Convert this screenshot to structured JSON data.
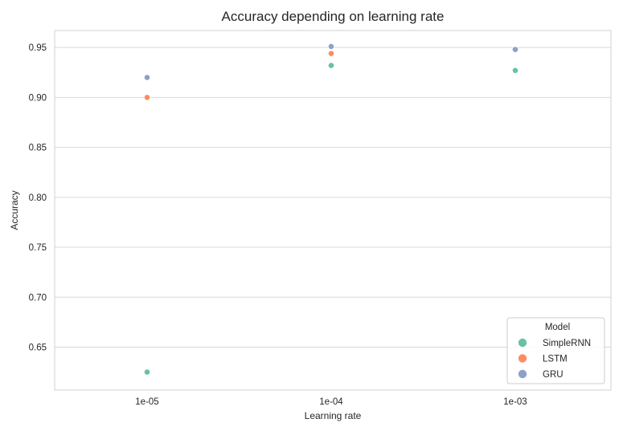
{
  "chart_data": {
    "type": "scatter",
    "title": "Accuracy depending on learning rate",
    "xlabel": "Learning rate",
    "ylabel": "Accuracy",
    "categories": [
      "1e-05",
      "1e-04",
      "1e-03"
    ],
    "yticks": [
      "0.65",
      "0.70",
      "0.75",
      "0.80",
      "0.85",
      "0.90",
      "0.95"
    ],
    "ylim": [
      0.607,
      0.967
    ],
    "grid": true,
    "legend": {
      "title": "Model",
      "placement": "lower-right"
    },
    "series": [
      {
        "name": "SimpleRNN",
        "color": "#66c2a5",
        "values": [
          0.625,
          0.932,
          0.927
        ]
      },
      {
        "name": "LSTM",
        "color": "#fc8d62",
        "values": [
          0.9,
          0.944,
          0.948
        ]
      },
      {
        "name": "GRU",
        "color": "#8da0cb",
        "values": [
          0.92,
          0.951,
          0.948
        ]
      }
    ]
  }
}
